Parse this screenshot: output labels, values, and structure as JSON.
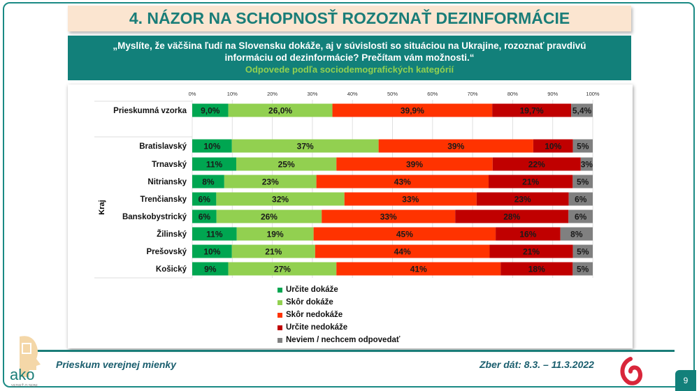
{
  "title": "4. NÁZOR NA SCHOPNOSŤ ROZOZNAŤ DEZINFORMÁCIE",
  "question": "„Myslíte, že väčšina ľudí na Slovensku dokáže, aj v súvislosti so situáciou na Ukrajine, rozoznať pravdivú informáciu od dezinformácie? Prečítam vám možnosti.“",
  "subtitle": "Odpovede podľa sociodemografických kategórií",
  "footer": {
    "left": "Prieskum verejnej mienky",
    "right": "Zber dát: 8.3. – 11.3.2022",
    "page": "9",
    "logo": "ako",
    "logo_tagline": "VEDIEŤ O SEBE"
  },
  "chart_data": {
    "type": "bar",
    "orientation": "horizontal-stacked-100",
    "xlim": [
      0,
      100
    ],
    "xticks": [
      "0%",
      "10%",
      "20%",
      "30%",
      "40%",
      "50%",
      "60%",
      "70%",
      "80%",
      "90%",
      "100%"
    ],
    "group_label": "Kraj",
    "legend_position": "bottom",
    "grid": true,
    "series": [
      {
        "name": "Určite dokáže",
        "color": "#00a651"
      },
      {
        "name": "Skôr dokáže",
        "color": "#92d050"
      },
      {
        "name": "Skôr nedokáže",
        "color": "#ff3300"
      },
      {
        "name": "Určite nedokáže",
        "color": "#c00000"
      },
      {
        "name": "Neviem / nechcem odpovedať",
        "color": "#808080"
      }
    ],
    "rows": [
      {
        "category": "Prieskumná vzorka",
        "values": [
          9.0,
          26.0,
          39.9,
          19.7,
          5.4
        ],
        "labels": [
          "9,0%",
          "26,0%",
          "39,9%",
          "19,7%",
          "5,4%"
        ]
      },
      {
        "category": "Bratislavský",
        "values": [
          10,
          37,
          39,
          10,
          5
        ],
        "labels": [
          "10%",
          "37%",
          "39%",
          "10%",
          "5%"
        ]
      },
      {
        "category": "Trnavský",
        "values": [
          11,
          25,
          39,
          22,
          3
        ],
        "labels": [
          "11%",
          "25%",
          "39%",
          "22%",
          "3%"
        ]
      },
      {
        "category": "Nitriansky",
        "values": [
          8,
          23,
          43,
          21,
          5
        ],
        "labels": [
          "8%",
          "23%",
          "43%",
          "21%",
          "5%"
        ]
      },
      {
        "category": "Trenčiansky",
        "values": [
          6,
          32,
          33,
          23,
          6
        ],
        "labels": [
          "6%",
          "32%",
          "33%",
          "23%",
          "6%"
        ]
      },
      {
        "category": "Banskobystrický",
        "values": [
          6,
          26,
          33,
          28,
          6
        ],
        "labels": [
          "6%",
          "26%",
          "33%",
          "28%",
          "6%"
        ]
      },
      {
        "category": "Žilinský",
        "values": [
          11,
          19,
          45,
          16,
          8
        ],
        "labels": [
          "11%",
          "19%",
          "45%",
          "16%",
          "8%"
        ]
      },
      {
        "category": "Prešovský",
        "values": [
          10,
          21,
          44,
          21,
          5
        ],
        "labels": [
          "10%",
          "21%",
          "44%",
          "21%",
          "5%"
        ]
      },
      {
        "category": "Košický",
        "values": [
          9,
          27,
          41,
          18,
          5
        ],
        "labels": [
          "9%",
          "27%",
          "41%",
          "18%",
          "5%"
        ]
      }
    ]
  }
}
